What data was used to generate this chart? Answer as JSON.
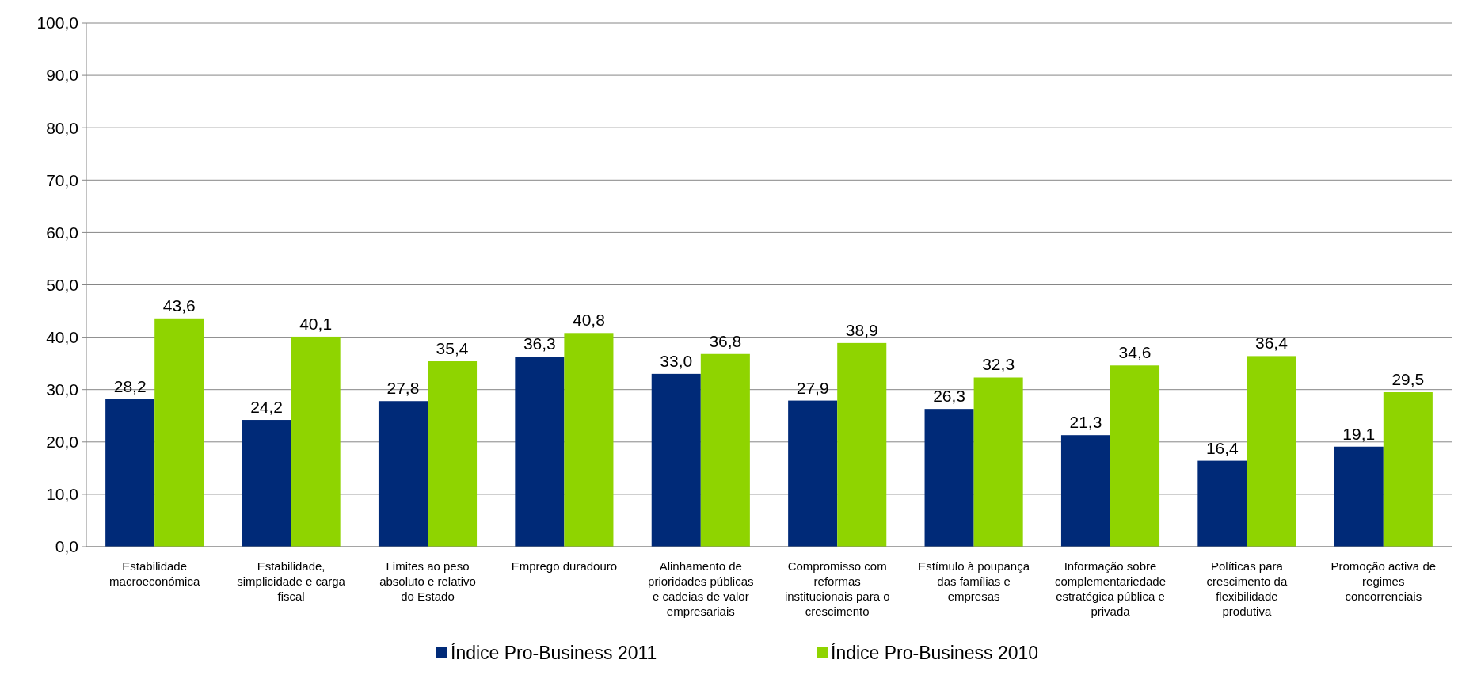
{
  "chart_data": {
    "type": "bar",
    "categories": [
      "Estabilidade macroeconómica",
      "Estabilidade, simplicidade e carga fiscal",
      "Limites ao peso absoluto e relativo do Estado",
      "Emprego duradouro",
      "Alinhamento de prioridades públicas e cadeias de valor empresariais",
      "Compromisso com reformas institucionais para o crescimento",
      "Estímulo à poupança das famílias e empresas",
      "Informação sobre complementariedade estratégica pública e privada",
      "Políticas para crescimento da flexibilidade produtiva",
      "Promoção activa de regimes concorrenciais"
    ],
    "series": [
      {
        "name": "Índice Pro-Business 2011",
        "color": "#002a78",
        "values": [
          28.2,
          24.2,
          27.8,
          36.3,
          33.0,
          27.9,
          26.3,
          21.3,
          16.4,
          19.1
        ],
        "value_labels": [
          "28,2",
          "24,2",
          "27,8",
          "36,3",
          "33,0",
          "27,9",
          "26,3",
          "21,3",
          "16,4",
          "19,1"
        ]
      },
      {
        "name": "Índice Pro-Business 2010",
        "color": "#8fd400",
        "values": [
          43.6,
          40.1,
          35.4,
          40.8,
          36.8,
          38.9,
          32.3,
          34.6,
          36.4,
          29.5
        ],
        "value_labels": [
          "43,6",
          "40,1",
          "35,4",
          "40,8",
          "36,8",
          "38,9",
          "32,3",
          "34,6",
          "36,4",
          "29,5"
        ]
      }
    ],
    "ylim": [
      0,
      100
    ],
    "yticks": [
      {
        "value": 0,
        "label": "0,0"
      },
      {
        "value": 10,
        "label": "10,0"
      },
      {
        "value": 20,
        "label": "20,0"
      },
      {
        "value": 30,
        "label": "30,0"
      },
      {
        "value": 40,
        "label": "40,0"
      },
      {
        "value": 50,
        "label": "50,0"
      },
      {
        "value": 60,
        "label": "60,0"
      },
      {
        "value": 70,
        "label": "70,0"
      },
      {
        "value": 80,
        "label": "80,0"
      },
      {
        "value": 90,
        "label": "90,0"
      },
      {
        "value": 100,
        "label": "100,0"
      }
    ],
    "grid": "y",
    "legend": "bottom"
  }
}
